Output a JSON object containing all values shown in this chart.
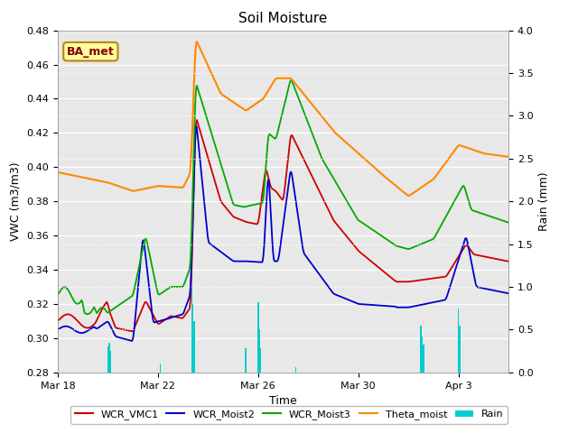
{
  "title": "Soil Moisture",
  "xlabel": "Time",
  "ylabel_left": "VWC (m3/m3)",
  "ylabel_right": "Rain (mm)",
  "ylim_left": [
    0.28,
    0.48
  ],
  "ylim_right": [
    0.0,
    4.0
  ],
  "bg_color": "#e8e8e8",
  "fig_color": "#ffffff",
  "annotation_text": "BA_met",
  "annotation_fg": "#8b0000",
  "annotation_bg": "#ffffa0",
  "annotation_border": "#b8860b",
  "x_tick_labels": [
    "Mar 18",
    "Mar 22",
    "Mar 26",
    "Mar 30",
    "Apr 3"
  ],
  "x_tick_positions": [
    0,
    4,
    8,
    12,
    16
  ],
  "xlim": [
    0,
    18
  ],
  "series_colors": {
    "WCR_VMC1": "#cc0000",
    "WCR_Moist2": "#0000cc",
    "WCR_Moist3": "#00aa00",
    "Theta_moist": "#ff8800",
    "Rain": "#00cccc"
  }
}
